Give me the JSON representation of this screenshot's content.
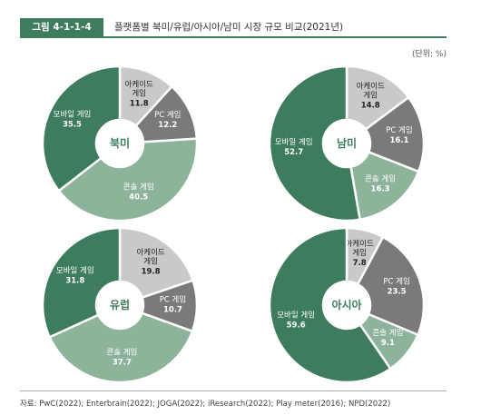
{
  "figure": {
    "number": "그림 4-1-1-4",
    "title": "플랫폼별 북미/유럽/아시아/남미 시장 규모 비교(2021년)",
    "unit": "(단위: %)"
  },
  "source": "자료: PwC(2022); Enterbrain(2022); JOGA(2022); iResearch(2022); Play meter(2016); NPD(2022)",
  "colors": {
    "mobile": "#3e7c5e",
    "console": "#8db49b",
    "pc": "#7a7a7a",
    "arcade": "#c9c9c9",
    "accent": "#3e7c5e"
  },
  "chart_data": [
    {
      "type": "pie",
      "title": "북미",
      "slices": [
        {
          "name": "아케이드 게임",
          "value": 11.8
        },
        {
          "name": "PC 게임",
          "value": 12.2
        },
        {
          "name": "콘솔 게임",
          "value": 40.5
        },
        {
          "name": "모바일 게임",
          "value": 35.5
        }
      ]
    },
    {
      "type": "pie",
      "title": "남미",
      "slices": [
        {
          "name": "아케이드 게임",
          "value": 14.8
        },
        {
          "name": "PC 게임",
          "value": 16.1
        },
        {
          "name": "콘솔 게임",
          "value": 16.3
        },
        {
          "name": "모바일 게임",
          "value": 52.7
        }
      ]
    },
    {
      "type": "pie",
      "title": "유럽",
      "slices": [
        {
          "name": "아케이드 게임",
          "value": 19.8
        },
        {
          "name": "PC 게임",
          "value": 10.7
        },
        {
          "name": "콘솔 게임",
          "value": 37.7
        },
        {
          "name": "모바일 게임",
          "value": 31.8
        }
      ]
    },
    {
      "type": "pie",
      "title": "아시아",
      "slices": [
        {
          "name": "아케이드 게임",
          "value": 7.8
        },
        {
          "name": "PC 게임",
          "value": 23.5
        },
        {
          "name": "콘솔 게임",
          "value": 9.1
        },
        {
          "name": "모바일 게임",
          "value": 59.6
        }
      ]
    }
  ]
}
